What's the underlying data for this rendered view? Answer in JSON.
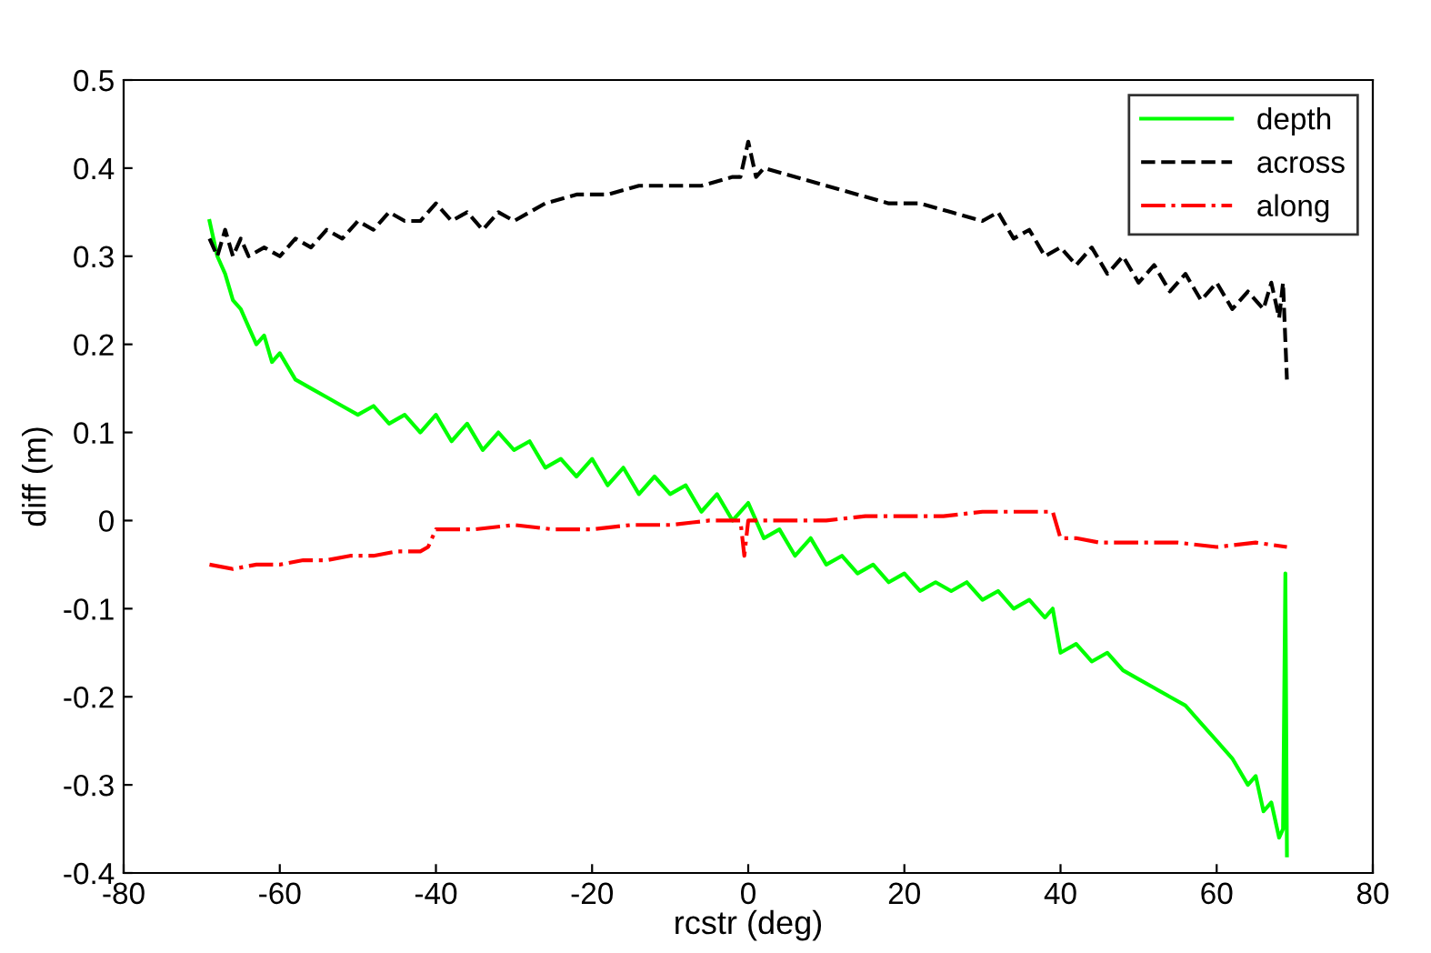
{
  "chart_data": {
    "type": "line",
    "xlabel": "rcstr (deg)",
    "ylabel": "diff (m)",
    "xlim": [
      -80,
      80
    ],
    "xticks": [
      -80,
      -60,
      -40,
      -20,
      0,
      20,
      40,
      60,
      80
    ],
    "ylim": [
      -0.4,
      0.5
    ],
    "yticks": [
      -0.4,
      -0.3,
      -0.2,
      -0.1,
      0,
      0.1,
      0.2,
      0.3,
      0.4,
      0.5
    ],
    "grid": false,
    "legend": "top right",
    "series": [
      {
        "name": "depth",
        "color": "#00ff00",
        "line_style": "solid",
        "x": [
          -69,
          -68,
          -67,
          -66,
          -65,
          -64,
          -63,
          -62,
          -61,
          -60,
          -58,
          -56,
          -54,
          -52,
          -50,
          -48,
          -46,
          -44,
          -42,
          -40,
          -38,
          -36,
          -34,
          -32,
          -30,
          -28,
          -26,
          -24,
          -22,
          -20,
          -18,
          -16,
          -14,
          -12,
          -10,
          -8,
          -6,
          -4,
          -2,
          0,
          2,
          4,
          6,
          8,
          10,
          12,
          14,
          16,
          18,
          20,
          22,
          24,
          26,
          28,
          30,
          32,
          34,
          36,
          38,
          39,
          40,
          42,
          44,
          46,
          48,
          50,
          52,
          54,
          56,
          58,
          60,
          62,
          64,
          65,
          66,
          67,
          68,
          68.5,
          68.8,
          69
        ],
        "values": [
          0.34,
          0.3,
          0.28,
          0.25,
          0.24,
          0.22,
          0.2,
          0.21,
          0.18,
          0.19,
          0.16,
          0.15,
          0.14,
          0.13,
          0.12,
          0.13,
          0.11,
          0.12,
          0.1,
          0.12,
          0.09,
          0.11,
          0.08,
          0.1,
          0.08,
          0.09,
          0.06,
          0.07,
          0.05,
          0.07,
          0.04,
          0.06,
          0.03,
          0.05,
          0.03,
          0.04,
          0.01,
          0.03,
          0.0,
          0.02,
          -0.02,
          -0.01,
          -0.04,
          -0.02,
          -0.05,
          -0.04,
          -0.06,
          -0.05,
          -0.07,
          -0.06,
          -0.08,
          -0.07,
          -0.08,
          -0.07,
          -0.09,
          -0.08,
          -0.1,
          -0.09,
          -0.11,
          -0.1,
          -0.15,
          -0.14,
          -0.16,
          -0.15,
          -0.17,
          -0.18,
          -0.19,
          -0.2,
          -0.21,
          -0.23,
          -0.25,
          -0.27,
          -0.3,
          -0.29,
          -0.33,
          -0.32,
          -0.36,
          -0.35,
          -0.06,
          -0.38
        ]
      },
      {
        "name": "across",
        "color": "#000000",
        "line_style": "dashed",
        "x": [
          -69,
          -68,
          -67,
          -66,
          -65,
          -64,
          -62,
          -60,
          -58,
          -56,
          -54,
          -52,
          -50,
          -48,
          -46,
          -44,
          -42,
          -40,
          -38,
          -36,
          -34,
          -32,
          -30,
          -26,
          -22,
          -18,
          -14,
          -10,
          -6,
          -2,
          -1,
          0,
          1,
          2,
          6,
          10,
          14,
          18,
          22,
          26,
          30,
          32,
          34,
          36,
          38,
          40,
          42,
          44,
          46,
          48,
          50,
          52,
          54,
          56,
          58,
          60,
          62,
          64,
          66,
          67,
          68,
          68.5,
          69
        ],
        "values": [
          0.32,
          0.3,
          0.33,
          0.3,
          0.32,
          0.3,
          0.31,
          0.3,
          0.32,
          0.31,
          0.33,
          0.32,
          0.34,
          0.33,
          0.35,
          0.34,
          0.34,
          0.36,
          0.34,
          0.35,
          0.33,
          0.35,
          0.34,
          0.36,
          0.37,
          0.37,
          0.38,
          0.38,
          0.38,
          0.39,
          0.39,
          0.43,
          0.39,
          0.4,
          0.39,
          0.38,
          0.37,
          0.36,
          0.36,
          0.35,
          0.34,
          0.35,
          0.32,
          0.33,
          0.3,
          0.31,
          0.29,
          0.31,
          0.28,
          0.3,
          0.27,
          0.29,
          0.26,
          0.28,
          0.25,
          0.27,
          0.24,
          0.26,
          0.24,
          0.27,
          0.23,
          0.27,
          0.16
        ]
      },
      {
        "name": "along",
        "color": "#ff0000",
        "line_style": "dashdot",
        "x": [
          -69,
          -66,
          -63,
          -60,
          -57,
          -54,
          -51,
          -48,
          -45,
          -42,
          -41,
          -40,
          -35,
          -30,
          -25,
          -20,
          -15,
          -10,
          -5,
          -1,
          -0.5,
          0,
          0.5,
          1,
          5,
          10,
          15,
          20,
          25,
          30,
          35,
          39,
          40,
          42,
          45,
          50,
          55,
          60,
          65,
          69
        ],
        "values": [
          -0.05,
          -0.055,
          -0.05,
          -0.05,
          -0.045,
          -0.045,
          -0.04,
          -0.04,
          -0.035,
          -0.035,
          -0.03,
          -0.01,
          -0.01,
          -0.005,
          -0.01,
          -0.01,
          -0.005,
          -0.005,
          0.0,
          0.0,
          -0.04,
          0.0,
          0.0,
          0.0,
          0.0,
          0.0,
          0.005,
          0.005,
          0.005,
          0.01,
          0.01,
          0.01,
          -0.02,
          -0.02,
          -0.025,
          -0.025,
          -0.025,
          -0.03,
          -0.025,
          -0.03
        ]
      }
    ]
  }
}
